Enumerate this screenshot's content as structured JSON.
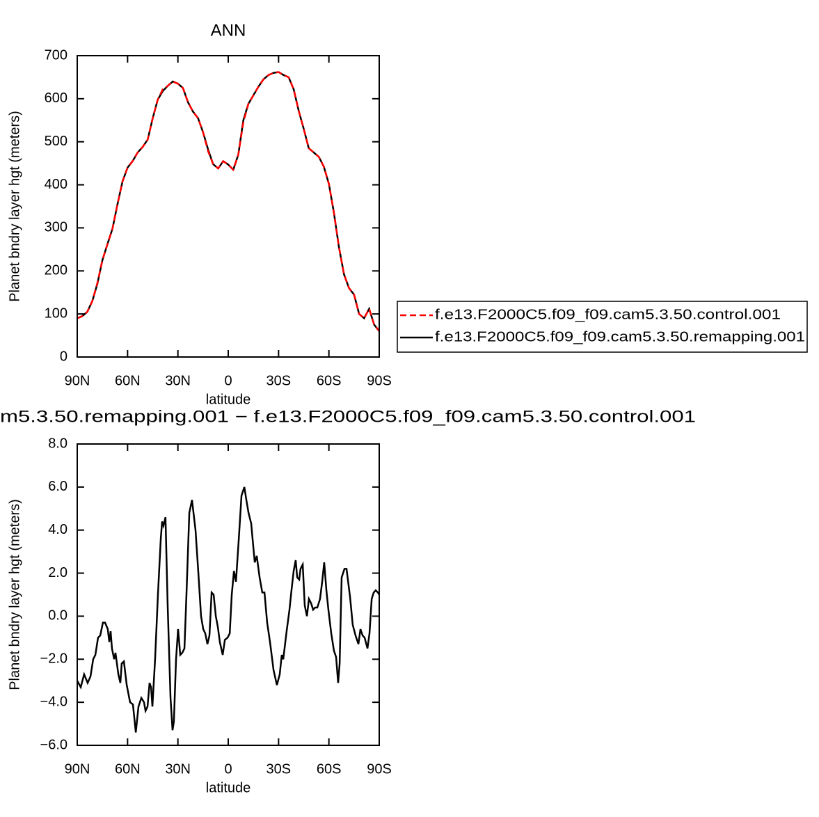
{
  "chart_data": [
    {
      "type": "line",
      "title": "ANN",
      "xlabel": "latitude",
      "ylabel": "Planet bndry layer hgt (meters)",
      "x": [
        90,
        87,
        84,
        81,
        78,
        75,
        72,
        69,
        66,
        63,
        60,
        57,
        54,
        51,
        48,
        45,
        42,
        39,
        36,
        33,
        30,
        27,
        24,
        21,
        18,
        15,
        12,
        9,
        6,
        3,
        0,
        -3,
        -6,
        -9,
        -12,
        -15,
        -18,
        -21,
        -24,
        -27,
        -30,
        -33,
        -36,
        -39,
        -42,
        -45,
        -48,
        -51,
        -54,
        -57,
        -60,
        -63,
        -66,
        -69,
        -72,
        -75,
        -78,
        -81,
        -84,
        -87,
        -90
      ],
      "series": [
        {
          "name": "f.e13.F2000C5.f09_f09.cam5.3.50.control.001",
          "color": "#ff0000",
          "linestyle": "dashed",
          "values": [
            90,
            95,
            105,
            130,
            172,
            225,
            262,
            298,
            355,
            408,
            440,
            455,
            475,
            488,
            505,
            555,
            598,
            622,
            630,
            640,
            635,
            625,
            592,
            570,
            555,
            522,
            478,
            448,
            438,
            455,
            447,
            435,
            470,
            545,
            588,
            608,
            628,
            645,
            655,
            660,
            662,
            655,
            650,
            622,
            572,
            530,
            485,
            475,
            465,
            442,
            402,
            335,
            255,
            192,
            160,
            145,
            100,
            90,
            112,
            75,
            60
          ]
        },
        {
          "name": "f.e13.F2000C5.f09_f09.cam5.3.50.remapping.001",
          "color": "#000000",
          "linestyle": "solid",
          "values": [
            90,
            95,
            105,
            130,
            170,
            225,
            262,
            298,
            355,
            408,
            440,
            455,
            475,
            488,
            505,
            555,
            598,
            618,
            630,
            640,
            635,
            625,
            592,
            570,
            555,
            522,
            482,
            448,
            438,
            455,
            447,
            435,
            470,
            550,
            588,
            608,
            628,
            645,
            655,
            660,
            662,
            655,
            650,
            622,
            572,
            530,
            485,
            475,
            465,
            442,
            402,
            335,
            255,
            192,
            160,
            145,
            100,
            90,
            112,
            75,
            60
          ]
        }
      ],
      "xlim": [
        90,
        -90
      ],
      "xticks": [
        {
          "value": 90,
          "label": "90N"
        },
        {
          "value": 60,
          "label": "60N"
        },
        {
          "value": 30,
          "label": "30N"
        },
        0,
        {
          "value": -30,
          "label": "30S"
        },
        {
          "value": -60,
          "label": "60S"
        },
        {
          "value": -90,
          "label": "90S"
        }
      ],
      "ylim": [
        0,
        700
      ],
      "yticks": [
        0,
        100,
        200,
        300,
        400,
        500,
        600,
        700
      ],
      "legend": "right"
    },
    {
      "type": "line",
      "title": "m5.3.50.remapping.001 − f.e13.F2000C5.f09_f09.cam5.3.50.control.001",
      "xlabel": "latitude",
      "ylabel": "Planet bndry layer hgt (meters)",
      "x": [
        90.0,
        87.9,
        85.9,
        83.8,
        82.1,
        80.5,
        79.2,
        77.6,
        76.3,
        74.7,
        73.4,
        71.8,
        70.9,
        70.1,
        69.3,
        68.0,
        67.2,
        65.5,
        64.3,
        63.5,
        62.2,
        60.5,
        58.5,
        56.8,
        55.1,
        53.5,
        51.8,
        50.2,
        49.3,
        48.1,
        46.9,
        46.0,
        45.2,
        43.6,
        41.9,
        40.2,
        39.4,
        38.6,
        37.4,
        36.1,
        34.4,
        33.2,
        32.4,
        31.1,
        29.9,
        28.6,
        27.4,
        26.1,
        24.9,
        23.2,
        21.6,
        19.5,
        17.8,
        16.2,
        14.9,
        13.7,
        12.4,
        11.2,
        9.9,
        8.7,
        7.4,
        6.2,
        5.0,
        3.3,
        2.0,
        0.4,
        -0.9,
        -2.1,
        -3.4,
        -4.6,
        -6.3,
        -7.9,
        -9.6,
        -10.8,
        -12.1,
        -13.7,
        -14.5,
        -15.8,
        -17.0,
        -18.7,
        -20.3,
        -21.6,
        -23.2,
        -24.9,
        -27.0,
        -29.0,
        -30.7,
        -31.9,
        -32.8,
        -34.8,
        -36.5,
        -37.7,
        -39.0,
        -40.2,
        -41.1,
        -42.3,
        -43.1,
        -44.4,
        -45.6,
        -46.9,
        -48.1,
        -49.4,
        -50.6,
        -51.8,
        -53.1,
        -54.7,
        -56.0,
        -57.2,
        -58.5,
        -59.7,
        -61.4,
        -63.0,
        -64.3,
        -65.5,
        -66.4,
        -67.6,
        -69.3,
        -70.5,
        -72.6,
        -74.2,
        -75.9,
        -77.6,
        -78.8,
        -80.1,
        -81.3,
        -83.0,
        -84.2,
        -85.5,
        -86.7,
        -87.9,
        -89.2,
        -90.0
      ],
      "series": [
        {
          "name": null,
          "color": "#000000",
          "linestyle": "solid",
          "values": [
            -3.0,
            -3.3,
            -2.7,
            -3.1,
            -2.8,
            -2.0,
            -1.8,
            -1.0,
            -0.9,
            -0.3,
            -0.3,
            -0.6,
            -1.2,
            -0.7,
            -1.5,
            -2.0,
            -1.7,
            -2.7,
            -3.1,
            -2.2,
            -2.1,
            -3.2,
            -4.0,
            -4.1,
            -5.4,
            -4.2,
            -3.8,
            -4.0,
            -4.4,
            -4.2,
            -3.1,
            -3.3,
            -4.2,
            -2.0,
            1.0,
            3.6,
            4.4,
            4.2,
            4.6,
            0.5,
            -3.8,
            -5.3,
            -4.9,
            -2.0,
            -0.6,
            -1.8,
            -1.7,
            -1.5,
            1.0,
            4.8,
            5.4,
            4.0,
            2.0,
            0.0,
            -0.6,
            -0.8,
            -1.3,
            -0.9,
            1.1,
            1.0,
            0.0,
            -0.5,
            -1.2,
            -1.8,
            -1.1,
            -1.0,
            -0.8,
            1.0,
            2.1,
            1.6,
            3.6,
            5.6,
            6.0,
            5.4,
            4.8,
            4.3,
            3.6,
            2.5,
            2.8,
            1.8,
            1.1,
            1.1,
            -0.3,
            -1.2,
            -2.5,
            -3.2,
            -2.7,
            -1.8,
            -2.0,
            -0.7,
            0.3,
            1.2,
            2.1,
            2.6,
            1.8,
            1.7,
            2.2,
            2.4,
            0.5,
            0.0,
            0.8,
            0.6,
            0.3,
            0.4,
            0.4,
            0.8,
            1.6,
            2.5,
            1.2,
            0.3,
            -0.8,
            -1.6,
            -1.9,
            -3.1,
            -2.2,
            1.8,
            2.2,
            2.2,
            0.9,
            -0.4,
            -0.9,
            -1.3,
            -0.6,
            -0.9,
            -1.0,
            -1.5,
            -0.8,
            0.8,
            1.1,
            1.2,
            1.1,
            1.0
          ]
        }
      ],
      "xlim": [
        90,
        -90
      ],
      "xticks": [
        {
          "value": 90,
          "label": "90N"
        },
        {
          "value": 60,
          "label": "60N"
        },
        {
          "value": 30,
          "label": "30N"
        },
        0,
        {
          "value": -30,
          "label": "30S"
        },
        {
          "value": -60,
          "label": "60S"
        },
        {
          "value": -90,
          "label": "90S"
        }
      ],
      "ylim": [
        -6,
        8
      ],
      "yticks": [
        {
          "value": -6,
          "label": "−6.0"
        },
        {
          "value": -4,
          "label": "−4.0"
        },
        {
          "value": -2,
          "label": "−2.0"
        },
        {
          "value": 0,
          "label": "0.0"
        },
        {
          "value": 2,
          "label": "2.0"
        },
        {
          "value": 4,
          "label": "4.0"
        },
        {
          "value": 6,
          "label": "6.0"
        },
        {
          "value": 8,
          "label": "8.0"
        }
      ]
    }
  ]
}
